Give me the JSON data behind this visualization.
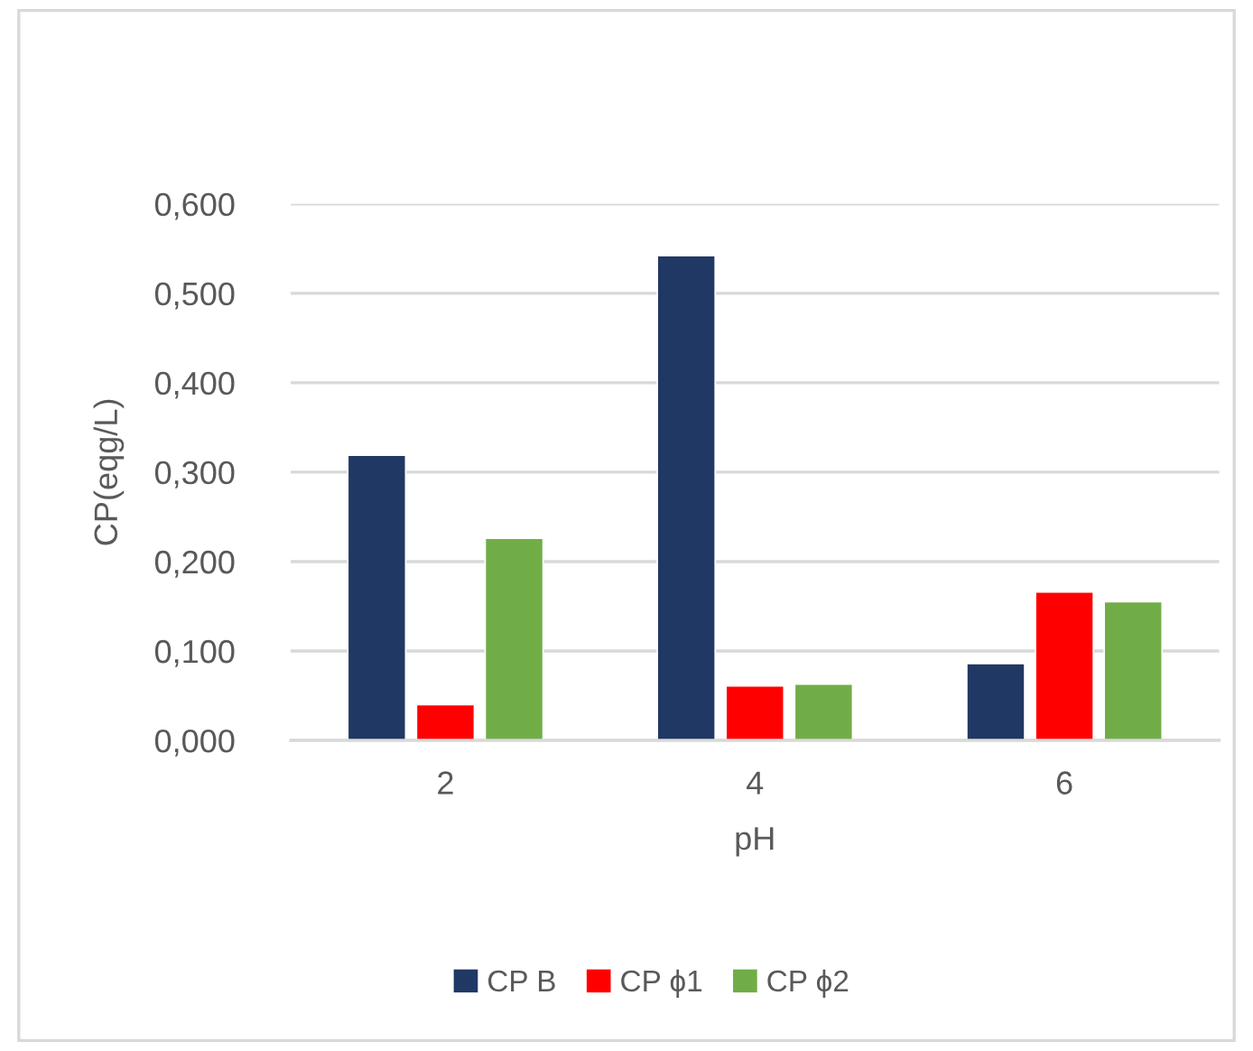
{
  "chart_data": {
    "type": "bar",
    "xlabel": "pH",
    "ylabel": "CP(eqg/L)",
    "categories": [
      "2",
      "4",
      "6"
    ],
    "series": [
      {
        "name": "CP B",
        "color": "#203864",
        "values": [
          0.319,
          0.542,
          0.086
        ]
      },
      {
        "name": "CP ϕ1",
        "color": "#ff0000",
        "values": [
          0.04,
          0.061,
          0.166
        ]
      },
      {
        "name": "CP ϕ2",
        "color": "#70ad47",
        "values": [
          0.226,
          0.063,
          0.155
        ]
      }
    ],
    "ylim": [
      0,
      0.6
    ],
    "yticks": [
      {
        "value": 0,
        "label": "0,000"
      },
      {
        "value": 0.1,
        "label": "0,100"
      },
      {
        "value": 0.2,
        "label": "0,200"
      },
      {
        "value": 0.3,
        "label": "0,300"
      },
      {
        "value": 0.4,
        "label": "0,400"
      },
      {
        "value": 0.5,
        "label": "0,500"
      },
      {
        "value": 0.6,
        "label": "0,600"
      }
    ],
    "grid": "y",
    "legend": "bottom"
  }
}
